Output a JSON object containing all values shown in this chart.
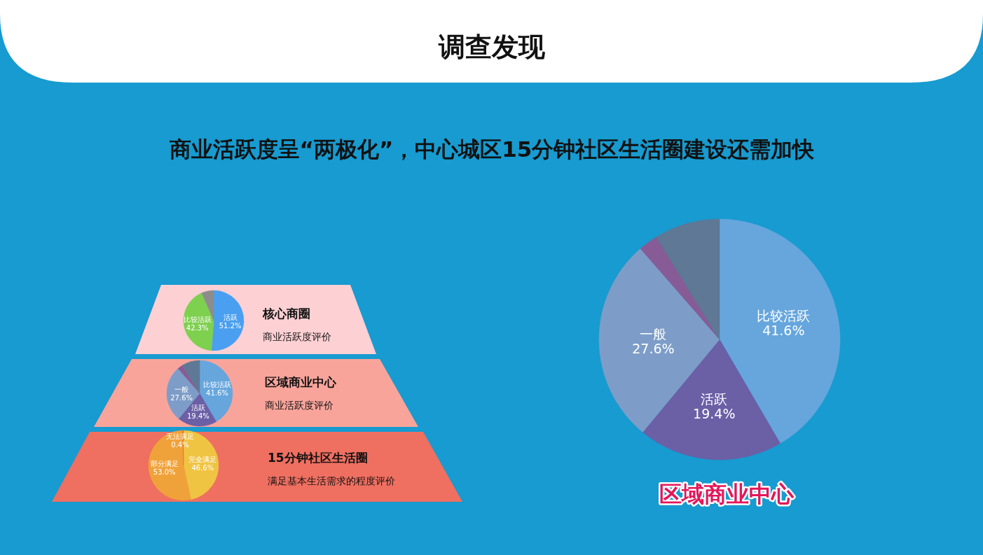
{
  "chart_data": [
    {
      "type": "other",
      "title": "调查发现",
      "subtitle": "商业活跃度呈“两极化”，中心城区15分钟社区生活圈建设还需加快"
    },
    {
      "type": "pie",
      "title": "核心商圈",
      "subtitle": "商业活跃度评价",
      "categories": [
        "活跃",
        "比较活跃",
        null
      ],
      "values": [
        51.2,
        42.3,
        6.5
      ],
      "value_labels": [
        "51.2%",
        "42.3%",
        null
      ],
      "colors": [
        "#4a9ff0",
        "#7ed04f",
        "#8c8c8c"
      ]
    },
    {
      "type": "pie",
      "title": "区域商业中心",
      "subtitle": "商业活跃度评价",
      "categories": [
        "比较活跃",
        "活跃",
        "一般",
        null,
        null
      ],
      "values": [
        41.6,
        19.4,
        27.6,
        2.6,
        8.8
      ],
      "value_labels": [
        "41.6%",
        "19.4%",
        "27.6%",
        null,
        null
      ],
      "colors": [
        "#66a6dd",
        "#6b5fa6",
        "#7d9dc8",
        "#875c96",
        "#5e7896"
      ]
    },
    {
      "type": "pie",
      "title": "15分钟社区生活圈",
      "subtitle": "满足基本生活需求的程度评价",
      "categories": [
        "完全满足",
        "部分满足",
        "无法满足"
      ],
      "values": [
        46.6,
        53.0,
        0.4
      ],
      "value_labels": [
        "46.6%",
        "53.0%",
        "0.4%"
      ],
      "colors": [
        "#f0c443",
        "#f0a23a",
        "#e8702e"
      ]
    },
    {
      "type": "pie",
      "title": "区域商业中心",
      "categories": [
        "比较活跃",
        "活跃",
        "一般",
        null,
        null
      ],
      "values": [
        41.6,
        19.4,
        27.6,
        2.6,
        8.8
      ],
      "value_labels": [
        "41.6%",
        "19.4%",
        "27.6%",
        null,
        null
      ],
      "colors": [
        "#66a6dd",
        "#6b5fa6",
        "#7d9dc8",
        "#875c96",
        "#5e7896"
      ]
    }
  ]
}
